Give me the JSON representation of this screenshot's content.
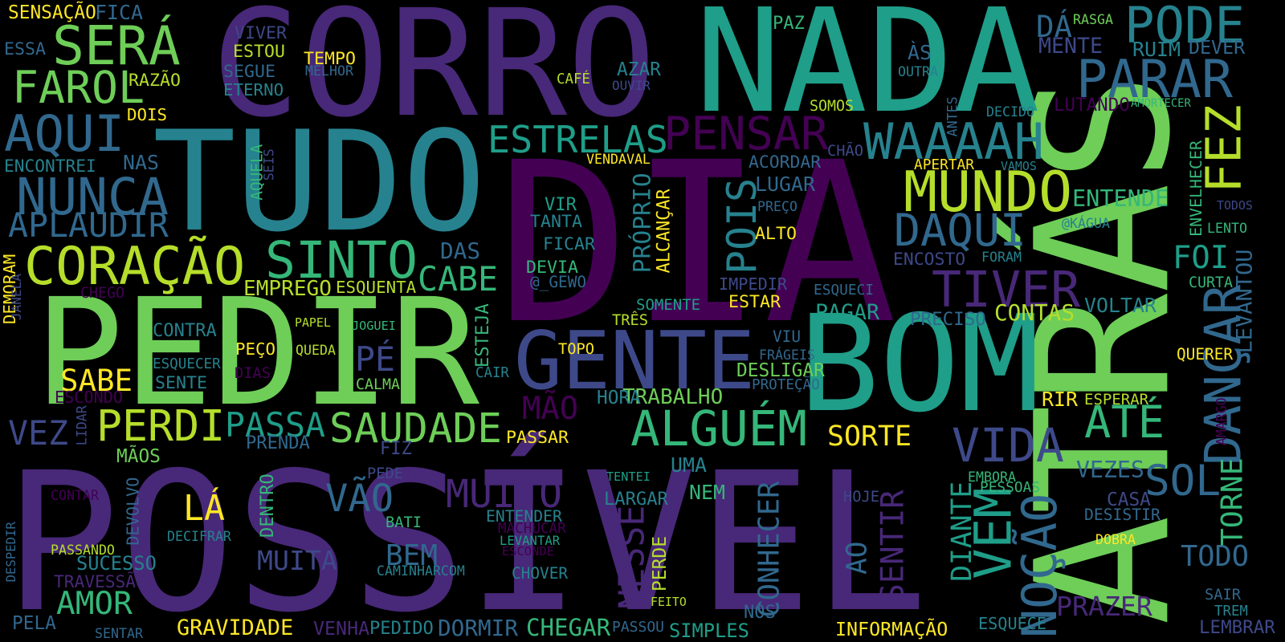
{
  "palette": {
    "background": "#000000",
    "dark_purple": "#440154",
    "purple": "#482878",
    "indigo": "#3e4989",
    "blue": "#31688e",
    "teal": "#26828e",
    "green_teal": "#1f9e89",
    "green": "#35b779",
    "light_green": "#6ece58",
    "lime": "#b5de2b",
    "yellow": "#fde725"
  },
  "words": [
    {
      "text": "POSSÍVEL",
      "color": "#482878"
    },
    {
      "text": "DIA",
      "color": "#440154"
    },
    {
      "text": "ATRÁS",
      "color": "#6ece58"
    },
    {
      "text": "CORRO",
      "color": "#482878"
    },
    {
      "text": "NADA",
      "color": "#1f9e89"
    },
    {
      "text": "PEDIR",
      "color": "#6ece58"
    },
    {
      "text": "TUDO",
      "color": "#26828e"
    },
    {
      "text": "BOM",
      "color": "#1f9e89"
    },
    {
      "text": "GENTE",
      "color": "#3e4989"
    },
    {
      "text": "SERÁ",
      "color": "#6ece58"
    },
    {
      "text": "PODE",
      "color": "#26828e"
    },
    {
      "text": "PARAR",
      "color": "#31688e"
    },
    {
      "text": "FAROL",
      "color": "#6ece58"
    },
    {
      "text": "AQUI",
      "color": "#31688e"
    },
    {
      "text": "NUNCA",
      "color": "#31688e"
    },
    {
      "text": "CORAÇÃO",
      "color": "#b5de2b"
    },
    {
      "text": "SINTO",
      "color": "#35b779"
    },
    {
      "text": "ESTRELAS",
      "color": "#1f9e89"
    },
    {
      "text": "PENSAR",
      "color": "#440154"
    },
    {
      "text": "WAAAAH",
      "color": "#26828e"
    },
    {
      "text": "MUNDO",
      "color": "#b5de2b"
    },
    {
      "text": "DAQUI",
      "color": "#31688e"
    },
    {
      "text": "TIVER",
      "color": "#482878"
    },
    {
      "text": "ALGUÉM",
      "color": "#35b779"
    },
    {
      "text": "SAUDADE",
      "color": "#6ece58"
    },
    {
      "text": "PERDI",
      "color": "#b5de2b"
    },
    {
      "text": "PASSA",
      "color": "#1f9e89"
    },
    {
      "text": "VIDA",
      "color": "#3e4989"
    },
    {
      "text": "ATÉ",
      "color": "#35b779"
    },
    {
      "text": "DANÇAR",
      "color": "#31688e"
    },
    {
      "text": "SOL",
      "color": "#31688e"
    },
    {
      "text": "FEZ",
      "color": "#b5de2b"
    },
    {
      "text": "FOI",
      "color": "#1f9e89"
    },
    {
      "text": "MUITO",
      "color": "#482878"
    },
    {
      "text": "VÃO",
      "color": "#31688e"
    },
    {
      "text": "APLAUDIR",
      "color": "#31688e"
    },
    {
      "text": "VEZ",
      "color": "#3e4989"
    },
    {
      "text": "CABE",
      "color": "#35b779"
    },
    {
      "text": "POIS",
      "color": "#26828e"
    },
    {
      "text": "PÉ",
      "color": "#3e4989"
    },
    {
      "text": "SABE",
      "color": "#fde725"
    },
    {
      "text": "LÁ",
      "color": "#fde725"
    },
    {
      "text": "MUITA",
      "color": "#3e4989"
    },
    {
      "text": "BEM",
      "color": "#31688e"
    },
    {
      "text": "AMOR",
      "color": "#35b779"
    },
    {
      "text": "TODO",
      "color": "#31688e"
    },
    {
      "text": "PRAZER",
      "color": "#482878"
    },
    {
      "text": "NOÇÃO",
      "color": "#31688e"
    },
    {
      "text": "VEM",
      "color": "#1f9e89"
    },
    {
      "text": "SENTIR",
      "color": "#482878"
    },
    {
      "text": "NESSE",
      "color": "#482878"
    },
    {
      "text": "CONHECER",
      "color": "#31688e"
    },
    {
      "text": "SORTE",
      "color": "#fde725"
    },
    {
      "text": "MÃO",
      "color": "#440154"
    },
    {
      "text": "DIANTE",
      "color": "#1f9e89"
    },
    {
      "text": "AO",
      "color": "#31688e"
    },
    {
      "text": "TORNE",
      "color": "#35b779"
    },
    {
      "text": "PRÓPRIO",
      "color": "#26828e"
    },
    {
      "text": "ENTENDE",
      "color": "#35b779"
    },
    {
      "text": "EMPREGO",
      "color": "#b5de2b"
    },
    {
      "text": "TRABALHO",
      "color": "#6ece58"
    },
    {
      "text": "CONTAS",
      "color": "#b5de2b"
    },
    {
      "text": "ENVELHECER",
      "color": "#35b779"
    },
    {
      "text": "LEVANTOU",
      "color": "#31688e"
    },
    {
      "text": "SENSAÇÃO",
      "color": "#fde725"
    },
    {
      "text": "FICA",
      "color": "#31688e"
    },
    {
      "text": "ESSA",
      "color": "#31688e"
    },
    {
      "text": "RAZÃO",
      "color": "#b5de2b"
    },
    {
      "text": "DOIS",
      "color": "#fde725"
    },
    {
      "text": "VIVER",
      "color": "#3e4989"
    },
    {
      "text": "ESTOU",
      "color": "#b5de2b"
    },
    {
      "text": "SEGUE",
      "color": "#31688e"
    },
    {
      "text": "ETERNO",
      "color": "#26828e"
    },
    {
      "text": "TEMPO",
      "color": "#fde725"
    },
    {
      "text": "MELHOR",
      "color": "#31688e"
    },
    {
      "text": "CAFÉ",
      "color": "#b5de2b"
    },
    {
      "text": "AZAR",
      "color": "#26828e"
    },
    {
      "text": "OUVIR",
      "color": "#3e4989"
    },
    {
      "text": "PAZ",
      "color": "#35b779"
    },
    {
      "text": "DÁ",
      "color": "#31688e"
    },
    {
      "text": "RASGA",
      "color": "#6ece58"
    },
    {
      "text": "MENTE",
      "color": "#3e4989"
    },
    {
      "text": "ÀS",
      "color": "#31688e"
    },
    {
      "text": "OUTRA",
      "color": "#26828e"
    },
    {
      "text": "RUIM",
      "color": "#26828e"
    },
    {
      "text": "DEVER",
      "color": "#31688e"
    },
    {
      "text": "SOMOS",
      "color": "#b5de2b"
    },
    {
      "text": "DECIDO",
      "color": "#26828e"
    },
    {
      "text": "LUTANDO",
      "color": "#440154"
    },
    {
      "text": "AMORTECER",
      "color": "#35b779"
    },
    {
      "text": "ANTES",
      "color": "#31688e"
    },
    {
      "text": "CHÃO",
      "color": "#3e4989"
    },
    {
      "text": "ACORDAR",
      "color": "#31688e"
    },
    {
      "text": "APERTAR",
      "color": "#fde725"
    },
    {
      "text": "VAMOS",
      "color": "#26828e"
    },
    {
      "text": "ENCONTREI",
      "color": "#26828e"
    },
    {
      "text": "NAS",
      "color": "#31688e"
    },
    {
      "text": "AQUELA",
      "color": "#35b779"
    },
    {
      "text": "SEIS",
      "color": "#3e4989"
    },
    {
      "text": "VENDAVAL",
      "color": "#fde725"
    },
    {
      "text": "LUGAR",
      "color": "#31688e"
    },
    {
      "text": "PREÇO",
      "color": "#31688e"
    },
    {
      "text": "ALTO",
      "color": "#fde725"
    },
    {
      "text": "VIR",
      "color": "#1f9e89"
    },
    {
      "text": "TANTA",
      "color": "#26828e"
    },
    {
      "text": "FICAR",
      "color": "#26828e"
    },
    {
      "text": "DEVIA",
      "color": "#35b779"
    },
    {
      "text": "@_GEWO",
      "color": "#31688e"
    },
    {
      "text": "ALCANÇAR",
      "color": "#fde725"
    },
    {
      "text": "DAS",
      "color": "#31688e"
    },
    {
      "text": "ESQUENTA",
      "color": "#b5de2b"
    },
    {
      "text": "IMPEDIR",
      "color": "#3e4989"
    },
    {
      "text": "ESQUECI",
      "color": "#31688e"
    },
    {
      "text": "ENCOSTO",
      "color": "#3e4989"
    },
    {
      "text": "FORAM",
      "color": "#26828e"
    },
    {
      "text": "@KÁGUA",
      "color": "#26828e"
    },
    {
      "text": "LENTO",
      "color": "#35b779"
    },
    {
      "text": "TODOS",
      "color": "#3e4989"
    },
    {
      "text": "CURTA",
      "color": "#35b779"
    },
    {
      "text": "DEMORAM",
      "color": "#fde725"
    },
    {
      "text": "JANELA",
      "color": "#3e4989"
    },
    {
      "text": "CHEGO",
      "color": "#440154"
    },
    {
      "text": "SOMENTE",
      "color": "#1f9e89"
    },
    {
      "text": "ESTAR",
      "color": "#fde725"
    },
    {
      "text": "PAGAR",
      "color": "#1f9e89"
    },
    {
      "text": "PRECISO",
      "color": "#31688e"
    },
    {
      "text": "VOLTAR",
      "color": "#26828e"
    },
    {
      "text": "CONTRA",
      "color": "#26828e"
    },
    {
      "text": "PAPEL",
      "color": "#b5de2b"
    },
    {
      "text": "JOGUEI",
      "color": "#35b779"
    },
    {
      "text": "ESTEJA",
      "color": "#35b779"
    },
    {
      "text": "TRÊS",
      "color": "#b5de2b"
    },
    {
      "text": "VIU",
      "color": "#31688e"
    },
    {
      "text": "FRÁGEIS",
      "color": "#31688e"
    },
    {
      "text": "PEÇO",
      "color": "#fde725"
    },
    {
      "text": "QUEDA",
      "color": "#b5de2b"
    },
    {
      "text": "ESQUECER",
      "color": "#26828e"
    },
    {
      "text": "DIAS",
      "color": "#440154"
    },
    {
      "text": "SENTE",
      "color": "#26828e"
    },
    {
      "text": "ESCONDO",
      "color": "#440154"
    },
    {
      "text": "CAIR",
      "color": "#26828e"
    },
    {
      "text": "TOPO",
      "color": "#fde725"
    },
    {
      "text": "CALMA",
      "color": "#6ece58"
    },
    {
      "text": "DESLIGAR",
      "color": "#6ece58"
    },
    {
      "text": "PROTEÇÃO",
      "color": "#31688e"
    },
    {
      "text": "QUERER",
      "color": "#fde725"
    },
    {
      "text": "RIR",
      "color": "#fde725"
    },
    {
      "text": "ESPERAR",
      "color": "#b5de2b"
    },
    {
      "text": "AMARGO",
      "color": "#440154"
    },
    {
      "text": "HORA",
      "color": "#26828e"
    },
    {
      "text": "LIDAR",
      "color": "#3e4989"
    },
    {
      "text": "PRENDA",
      "color": "#31688e"
    },
    {
      "text": "FIZ",
      "color": "#3e4989"
    },
    {
      "text": "PASSAR",
      "color": "#fde725"
    },
    {
      "text": "MÃOS",
      "color": "#6ece58"
    },
    {
      "text": "PEDE",
      "color": "#3e4989"
    },
    {
      "text": "UMA",
      "color": "#26828e"
    },
    {
      "text": "TENTEI",
      "color": "#1f9e89"
    },
    {
      "text": "NEM",
      "color": "#35b779"
    },
    {
      "text": "LARGAR",
      "color": "#26828e"
    },
    {
      "text": "ENTENDER",
      "color": "#26828e"
    },
    {
      "text": "MACHUCAR",
      "color": "#440154"
    },
    {
      "text": "LEVANTAR",
      "color": "#1f9e89"
    },
    {
      "text": "ESCONDE",
      "color": "#440154"
    },
    {
      "text": "CONTAR",
      "color": "#440154"
    },
    {
      "text": "DEVOLVO",
      "color": "#31688e"
    },
    {
      "text": "DECIFRAR",
      "color": "#26828e"
    },
    {
      "text": "DENTRO",
      "color": "#35b779"
    },
    {
      "text": "BATI",
      "color": "#35b779"
    },
    {
      "text": "PASSANDO",
      "color": "#b5de2b"
    },
    {
      "text": "SUCESSO",
      "color": "#26828e"
    },
    {
      "text": "TRAVESSÃO",
      "color": "#482878"
    },
    {
      "text": "DESPEDIR",
      "color": "#31688e"
    },
    {
      "text": "CAMINHARCOM",
      "color": "#26828e"
    },
    {
      "text": "CHOVER",
      "color": "#26828e"
    },
    {
      "text": "PERDE",
      "color": "#b5de2b"
    },
    {
      "text": "FEITO",
      "color": "#b5de2b"
    },
    {
      "text": "EMBORA",
      "color": "#35b779"
    },
    {
      "text": "VEZES",
      "color": "#31688e"
    },
    {
      "text": "PESSOAS",
      "color": "#35b779"
    },
    {
      "text": "HOJE",
      "color": "#3e4989"
    },
    {
      "text": "CASA",
      "color": "#3e4989"
    },
    {
      "text": "DESISTIR",
      "color": "#31688e"
    },
    {
      "text": "DOBRA",
      "color": "#fde725"
    },
    {
      "text": "SAIR",
      "color": "#31688e"
    },
    {
      "text": "TREM",
      "color": "#26828e"
    },
    {
      "text": "LEMBRAR",
      "color": "#3e4989"
    },
    {
      "text": "ESQUECE",
      "color": "#26828e"
    },
    {
      "text": "NÓS",
      "color": "#31688e"
    },
    {
      "text": "INFORMAÇÃO",
      "color": "#fde725"
    },
    {
      "text": "PELA",
      "color": "#31688e"
    },
    {
      "text": "SENTAR",
      "color": "#31688e"
    },
    {
      "text": "GRAVIDADE",
      "color": "#fde725"
    },
    {
      "text": "VENHA",
      "color": "#482878"
    },
    {
      "text": "PEDIDO",
      "color": "#26828e"
    },
    {
      "text": "DORMIR",
      "color": "#31688e"
    },
    {
      "text": "CHEGAR",
      "color": "#35b779"
    },
    {
      "text": "PASSOU",
      "color": "#31688e"
    },
    {
      "text": "SIMPLES",
      "color": "#1f9e89"
    }
  ]
}
